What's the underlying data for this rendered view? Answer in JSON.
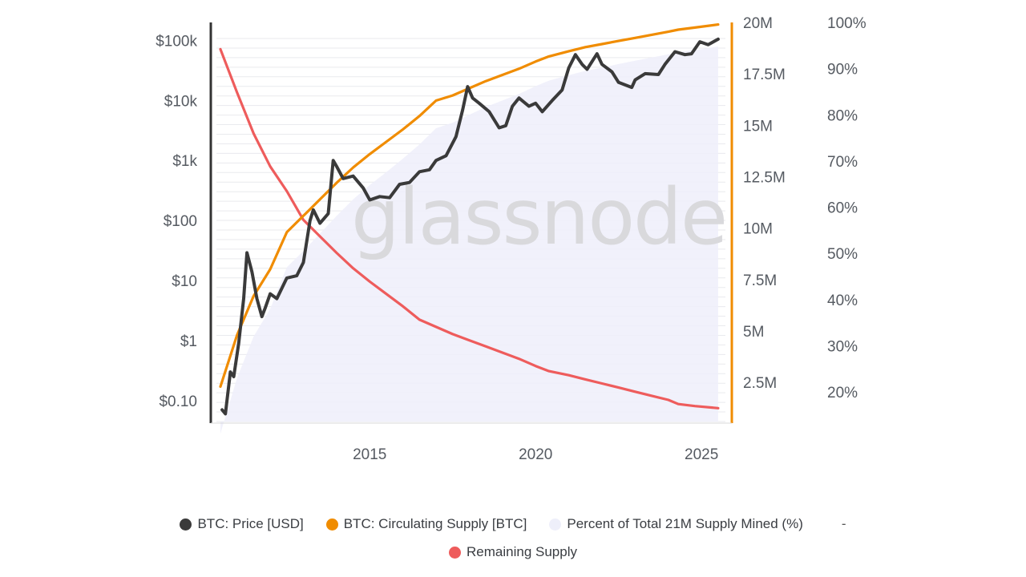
{
  "chart_data": {
    "type": "line",
    "watermark": "glassnode",
    "x_ticks": [
      "2015",
      "2020",
      "2025"
    ],
    "y_left": {
      "scale": "log",
      "ticks": [
        "$0.10",
        "$1",
        "$10",
        "$100",
        "$1k",
        "$10k",
        "$100k"
      ]
    },
    "y_right1": {
      "ticks": [
        "2.5M",
        "5M",
        "7.5M",
        "10M",
        "12.5M",
        "15M",
        "17.5M",
        "20M"
      ]
    },
    "y_right2": {
      "ticks": [
        "20%",
        "30%",
        "40%",
        "50%",
        "60%",
        "70%",
        "80%",
        "90%",
        "100%"
      ]
    },
    "colors": {
      "price": "#3a3a3a",
      "supply": "#f08c00",
      "percent": "#eeeffa",
      "remaining": "#ee5c5c"
    },
    "series": [
      {
        "name": "BTC: Price [USD]",
        "axis": "left",
        "x": [
          2010.55,
          2010.65,
          2010.8,
          2010.9,
          2011.05,
          2011.2,
          2011.3,
          2011.45,
          2011.6,
          2011.75,
          2011.85,
          2012.0,
          2012.2,
          2012.5,
          2012.8,
          2013.0,
          2013.2,
          2013.3,
          2013.5,
          2013.75,
          2013.9,
          2014.0,
          2014.2,
          2014.5,
          2014.8,
          2015.0,
          2015.3,
          2015.6,
          2015.9,
          2016.2,
          2016.5,
          2016.8,
          2017.0,
          2017.3,
          2017.6,
          2017.8,
          2017.95,
          2018.1,
          2018.3,
          2018.6,
          2018.9,
          2019.1,
          2019.3,
          2019.5,
          2019.8,
          2020.0,
          2020.2,
          2020.5,
          2020.8,
          2021.0,
          2021.2,
          2021.4,
          2021.55,
          2021.85,
          2022.0,
          2022.3,
          2022.5,
          2022.9,
          2023.0,
          2023.3,
          2023.7,
          2023.9,
          2024.2,
          2024.5,
          2024.7,
          2024.95,
          2025.2,
          2025.5
        ],
        "y": [
          0.07,
          0.06,
          0.3,
          0.25,
          0.9,
          5,
          29,
          14,
          5,
          2.5,
          3.5,
          6,
          5,
          11,
          12,
          20,
          100,
          150,
          90,
          130,
          1000,
          800,
          500,
          550,
          350,
          220,
          250,
          240,
          400,
          430,
          650,
          700,
          1000,
          1200,
          2500,
          7000,
          17000,
          11000,
          9000,
          6500,
          3500,
          3800,
          8000,
          11000,
          8000,
          9000,
          6500,
          10000,
          15000,
          35000,
          58000,
          40000,
          33000,
          60000,
          40000,
          30000,
          20000,
          16500,
          22000,
          28000,
          27000,
          40000,
          65000,
          58000,
          60000,
          95000,
          85000,
          105000
        ]
      },
      {
        "name": "BTC: Circulating Supply [BTC]",
        "axis": "right1",
        "x": [
          2010.5,
          2011.0,
          2011.5,
          2012.0,
          2012.5,
          2013.0,
          2013.5,
          2014.0,
          2014.5,
          2015.0,
          2015.5,
          2016.0,
          2016.5,
          2017.0,
          2017.5,
          2018.0,
          2018.5,
          2019.0,
          2019.5,
          2020.0,
          2020.4,
          2021.0,
          2021.5,
          2022.0,
          2022.5,
          2023.0,
          2023.5,
          2024.0,
          2024.3,
          2024.8,
          2025.5
        ],
        "y": [
          2.3,
          4.8,
          6.7,
          8.0,
          9.8,
          10.6,
          11.4,
          12.2,
          12.95,
          13.6,
          14.2,
          14.8,
          15.45,
          16.2,
          16.45,
          16.8,
          17.15,
          17.45,
          17.75,
          18.1,
          18.35,
          18.6,
          18.8,
          18.95,
          19.1,
          19.25,
          19.4,
          19.55,
          19.65,
          19.75,
          19.9
        ]
      },
      {
        "name": "Percent of Total 21M Supply Mined (%)",
        "axis": "right2",
        "x": [
          2010.5,
          2011.0,
          2011.5,
          2012.0,
          2012.5,
          2013.0,
          2013.5,
          2014.0,
          2014.5,
          2015.0,
          2015.5,
          2016.0,
          2016.5,
          2017.0,
          2017.5,
          2018.0,
          2018.5,
          2019.0,
          2019.5,
          2020.0,
          2020.4,
          2021.0,
          2021.5,
          2022.0,
          2022.5,
          2023.0,
          2023.5,
          2024.0,
          2024.3,
          2024.8,
          2025.5
        ],
        "y": [
          11,
          23,
          32,
          38,
          47,
          50.5,
          54.3,
          58.1,
          61.7,
          64.8,
          67.6,
          70.5,
          73.6,
          77.1,
          78.3,
          80,
          81.7,
          83.1,
          84.5,
          86.2,
          87.4,
          88.6,
          89.5,
          90.2,
          91,
          91.7,
          92.4,
          93.1,
          93.6,
          94,
          94.8
        ]
      },
      {
        "name": "Remaining Supply",
        "axis": "right1",
        "x": [
          2010.5,
          2011.0,
          2011.5,
          2012.0,
          2012.5,
          2013.0,
          2013.5,
          2014.0,
          2014.5,
          2015.0,
          2015.5,
          2016.0,
          2016.5,
          2017.0,
          2017.5,
          2018.0,
          2018.5,
          2019.0,
          2019.5,
          2020.0,
          2020.4,
          2021.0,
          2021.5,
          2022.0,
          2022.5,
          2023.0,
          2023.5,
          2024.0,
          2024.3,
          2024.8,
          2025.5
        ],
        "y": [
          18.7,
          16.6,
          14.6,
          13.0,
          11.8,
          10.4,
          9.6,
          8.8,
          8.05,
          7.4,
          6.8,
          6.2,
          5.55,
          5.2,
          4.85,
          4.55,
          4.25,
          3.95,
          3.65,
          3.3,
          3.05,
          2.85,
          2.65,
          2.45,
          2.25,
          2.05,
          1.85,
          1.65,
          1.45,
          1.35,
          1.25
        ]
      }
    ],
    "x_range": [
      2010.5,
      2025.6
    ],
    "y_left_range_log10": [
      -1.35,
      5.3
    ],
    "y_right1_range": [
      0.6,
      20.0
    ],
    "y_right2_range": [
      13.6,
      100
    ]
  },
  "legend": {
    "items": [
      {
        "label": "BTC: Price [USD]",
        "color": "#3a3a3a"
      },
      {
        "label": "BTC: Circulating Supply [BTC]",
        "color": "#f08c00"
      },
      {
        "label": "Percent of Total 21M Supply Mined (%)",
        "color": "#eeeffa"
      },
      {
        "label": "Remaining Supply",
        "color": "#ee5c5c"
      }
    ],
    "trailing": "-"
  }
}
